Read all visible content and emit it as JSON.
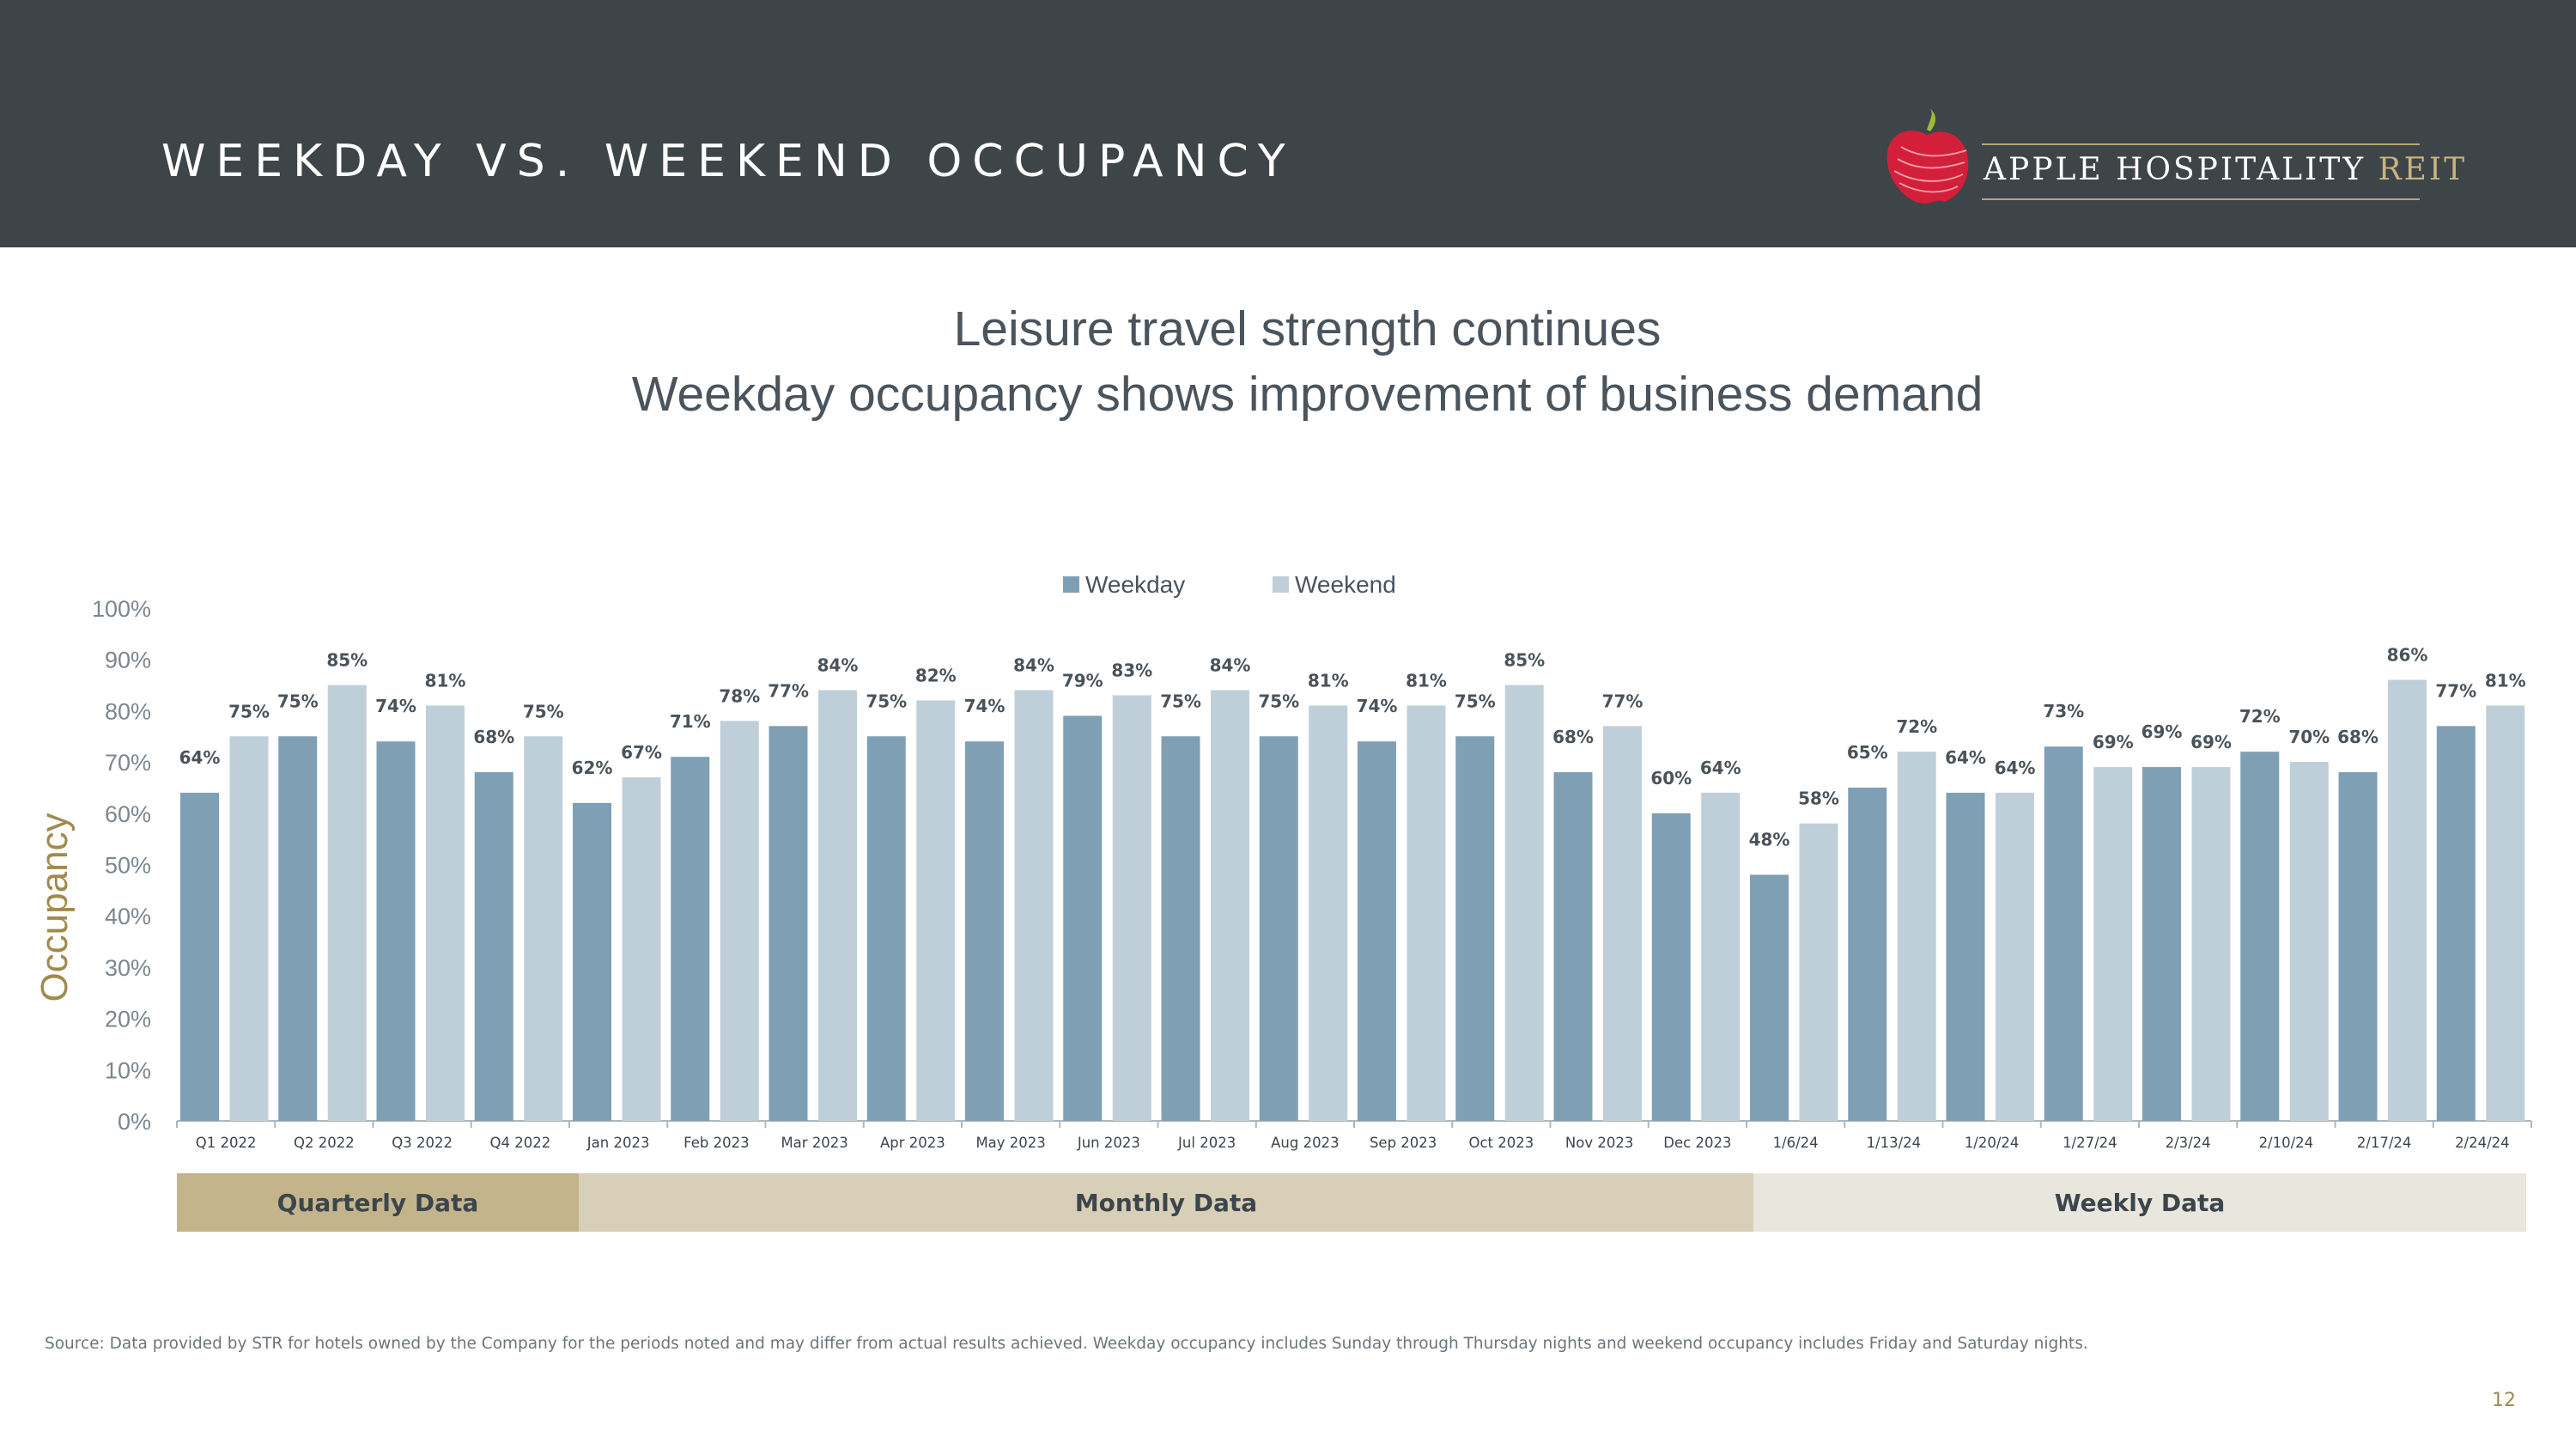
{
  "header": {
    "title": "WEEKDAY VS. WEEKEND OCCUPANCY",
    "logo_text": "APPLE HOSPITALITY",
    "logo_text_accent": "REIT"
  },
  "subtitle": {
    "line1": "Leisure travel strength continues",
    "line2": "Weekday occupancy shows improvement of business demand"
  },
  "chart_data": {
    "type": "bar",
    "ylabel": "Occupancy",
    "ylim": [
      0,
      100
    ],
    "yticks": [
      "0%",
      "10%",
      "20%",
      "30%",
      "40%",
      "50%",
      "60%",
      "70%",
      "80%",
      "90%",
      "100%"
    ],
    "legend_position": "top-center",
    "categories": [
      "Q1 2022",
      "Q2 2022",
      "Q3 2022",
      "Q4 2022",
      "Jan 2023",
      "Feb 2023",
      "Mar 2023",
      "Apr 2023",
      "May 2023",
      "Jun 2023",
      "Jul 2023",
      "Aug 2023",
      "Sep 2023",
      "Oct 2023",
      "Nov 2023",
      "Dec 2023",
      "1/6/24",
      "1/13/24",
      "1/20/24",
      "1/27/24",
      "2/3/24",
      "2/10/24",
      "2/17/24",
      "2/24/24"
    ],
    "series": [
      {
        "name": "Weekday",
        "color": "#7f9fb5",
        "values": [
          64,
          75,
          74,
          68,
          62,
          71,
          77,
          75,
          74,
          79,
          75,
          75,
          74,
          75,
          68,
          60,
          48,
          65,
          64,
          73,
          69,
          72,
          68,
          77
        ]
      },
      {
        "name": "Weekend",
        "color": "#bfcfda",
        "values": [
          75,
          85,
          81,
          75,
          67,
          78,
          84,
          82,
          84,
          83,
          84,
          81,
          81,
          85,
          77,
          64,
          58,
          72,
          64,
          69,
          69,
          70,
          86,
          81
        ]
      }
    ],
    "value_suffix": "%"
  },
  "bands": [
    {
      "label": "Quarterly Data",
      "color": "#c4b48c"
    },
    {
      "label": "Monthly Data",
      "color": "#d7cfb7"
    },
    {
      "label": "Weekly Data",
      "color": "#e9e6dd"
    }
  ],
  "footer": {
    "source": "Source:  Data provided by STR for hotels owned by the Company for the periods noted and may differ from actual results achieved. Weekday occupancy includes Sunday through Thursday nights and weekend occupancy includes Friday and Saturday nights.",
    "page_number": "12"
  },
  "colors": {
    "header_bg": "#3d4548",
    "accent_gold": "#a08a4d",
    "logo_red": "#d31f3a",
    "logo_green": "#9cba3a"
  }
}
